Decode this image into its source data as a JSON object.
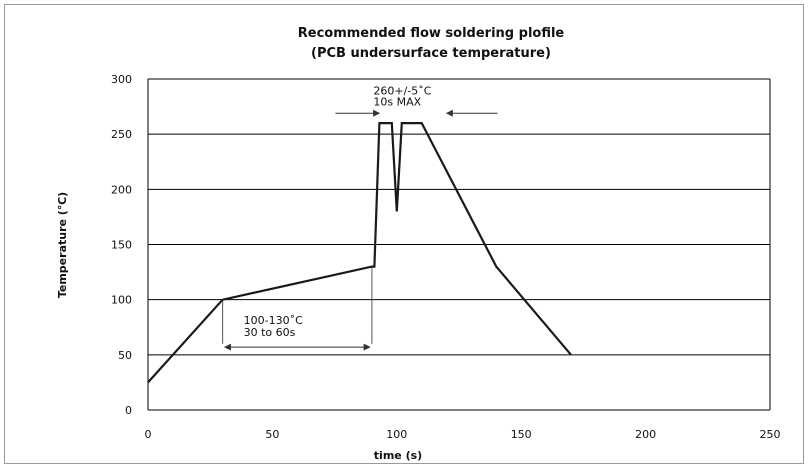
{
  "chart_data": {
    "type": "line",
    "title": "Recommended flow soldering plofile",
    "subtitle": "(PCB undersurface temperature)",
    "xlabel": "time (s)",
    "ylabel": "Temperature (℃)",
    "xlim": [
      0,
      250
    ],
    "ylim": [
      0,
      300
    ],
    "x_ticks": [
      "0",
      "50",
      "100",
      "150",
      "200",
      "250"
    ],
    "y_ticks": [
      "0",
      "50",
      "100",
      "150",
      "200",
      "250",
      "300"
    ],
    "grid": "horizontal",
    "legend": "none",
    "series": [
      {
        "x": [
          0,
          30,
          90,
          91,
          93,
          95,
          98,
          100,
          102,
          104,
          110,
          140,
          170
        ],
        "y": [
          25,
          100,
          130,
          130,
          260,
          260,
          260,
          180,
          260,
          260,
          260,
          130,
          50
        ]
      }
    ],
    "annotations": [
      {
        "line1": "100-130˚C",
        "line2": "30 to 60s",
        "x_range": [
          30,
          90
        ]
      },
      {
        "line1": "260+/-5˚C",
        "line2": "10s  MAX",
        "x_range": [
          93,
          120
        ]
      }
    ],
    "line_color": "#1a1a1a",
    "grid_color": "#000000"
  }
}
